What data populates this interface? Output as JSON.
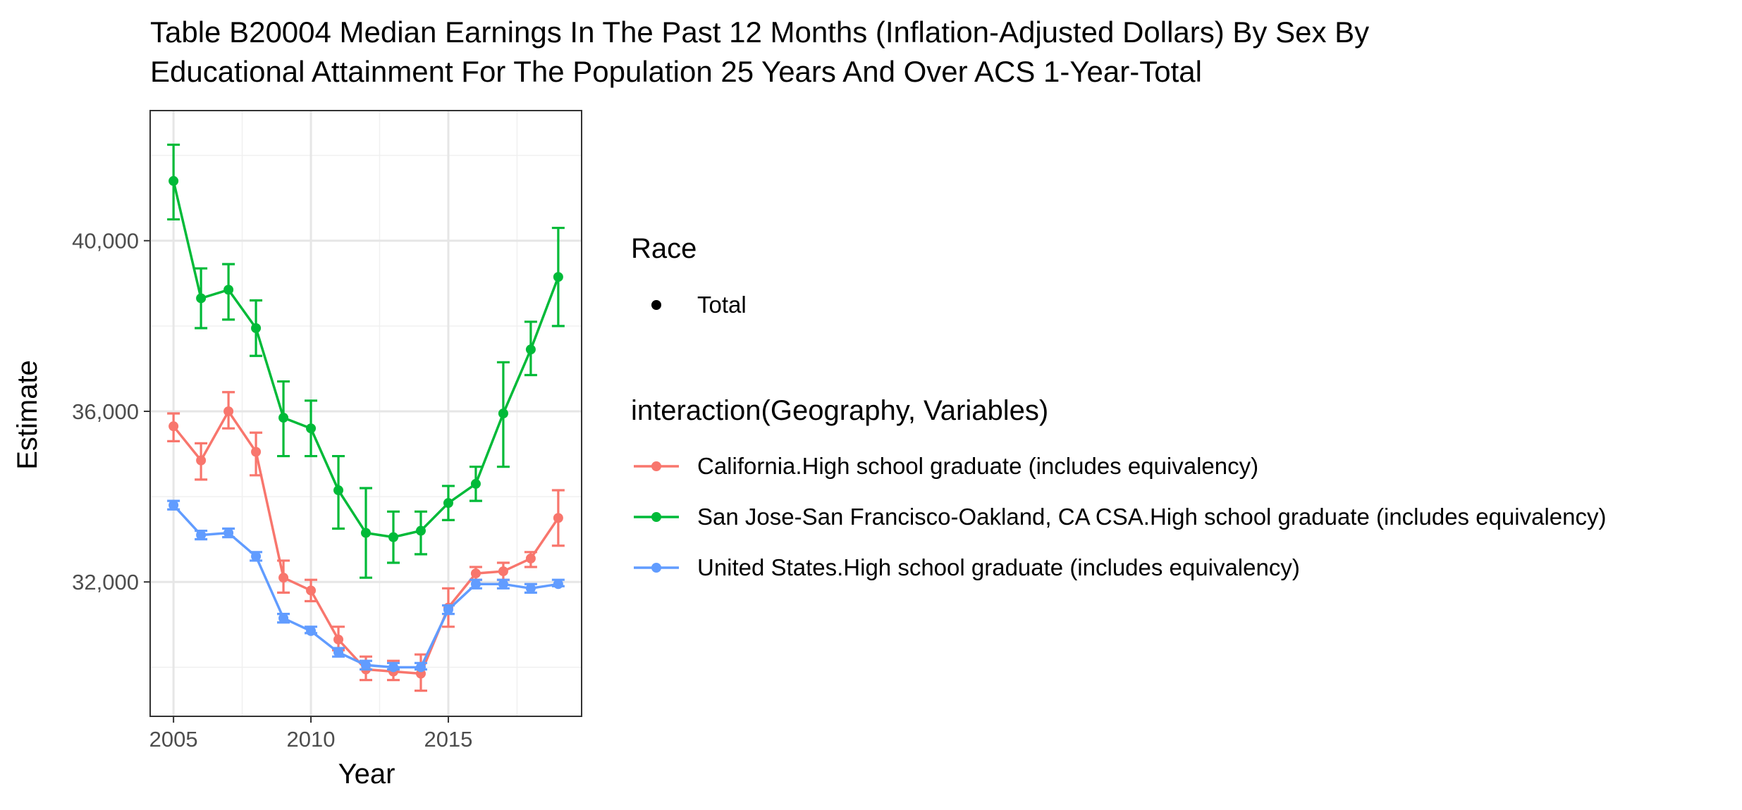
{
  "chart_data": {
    "type": "line",
    "title_line1": "Table B20004 Median Earnings In The Past 12 Months (Inflation-Adjusted Dollars) By Sex By",
    "title_line2": "Educational Attainment For The Population 25 Years And Over ACS 1-Year-Total",
    "xlabel": "Year",
    "ylabel": "Estimate",
    "xlim": [
      2004.15,
      2019.85
    ],
    "ylim": [
      28850,
      43050
    ],
    "x_ticks": [
      2005,
      2010,
      2015
    ],
    "x_tick_labels": [
      "2005",
      "2010",
      "2015"
    ],
    "y_ticks": [
      32000,
      36000,
      40000
    ],
    "y_tick_labels": [
      "32,000",
      "36,000",
      "40,000"
    ],
    "y_minor_ticks": [
      30000,
      34000,
      38000,
      42000
    ],
    "x_minor_ticks": [
      2007.5,
      2012.5,
      2017.5
    ],
    "grid": true,
    "legend_position": "right",
    "legend_shape": {
      "title": "Race",
      "entries": [
        "Total"
      ]
    },
    "legend_color": {
      "title": "interaction(Geography, Variables)"
    },
    "x": [
      2005,
      2006,
      2007,
      2008,
      2009,
      2010,
      2011,
      2012,
      2013,
      2014,
      2015,
      2016,
      2017,
      2018,
      2019
    ],
    "series": [
      {
        "name": "California.High school graduate (includes equivalency)",
        "color": "#F8766D",
        "values": [
          35650,
          34850,
          36000,
          35050,
          32100,
          31800,
          30650,
          29950,
          29900,
          29850,
          31400,
          32200,
          32250,
          32550,
          33500
        ],
        "err_low": [
          35300,
          34400,
          35600,
          34500,
          31750,
          31550,
          30400,
          29700,
          29700,
          29450,
          30950,
          32050,
          32050,
          32350,
          32850
        ],
        "err_high": [
          35950,
          35250,
          36450,
          35500,
          32500,
          32050,
          30950,
          30250,
          30150,
          30300,
          31850,
          32350,
          32450,
          32700,
          34150
        ]
      },
      {
        "name": "San Jose-San Francisco-Oakland, CA CSA.High school graduate (includes equivalency)",
        "color": "#00BA38",
        "values": [
          41400,
          38650,
          38850,
          37950,
          35850,
          35600,
          34150,
          33150,
          33050,
          33200,
          33850,
          34300,
          35950,
          37450,
          39150
        ],
        "err_low": [
          40500,
          37950,
          38150,
          37300,
          34950,
          34950,
          33250,
          32100,
          32450,
          32650,
          33450,
          33900,
          34700,
          36850,
          38000
        ],
        "err_high": [
          42250,
          39350,
          39450,
          38600,
          36700,
          36250,
          34950,
          34200,
          33650,
          33650,
          34250,
          34700,
          37150,
          38100,
          40300
        ]
      },
      {
        "name": "United States.High school graduate (includes equivalency)",
        "color": "#619CFF",
        "values": [
          33800,
          33100,
          33150,
          32600,
          31150,
          30850,
          30350,
          30050,
          30000,
          30000,
          31350,
          31950,
          31950,
          31850,
          31950
        ],
        "err_low": [
          33700,
          33000,
          33050,
          32500,
          31050,
          30800,
          30250,
          29950,
          29950,
          29950,
          31250,
          31850,
          31850,
          31750,
          31900
        ],
        "err_high": [
          33900,
          33200,
          33250,
          32700,
          31250,
          30950,
          30450,
          30150,
          30100,
          30100,
          31450,
          32050,
          32050,
          31950,
          32050
        ]
      }
    ]
  }
}
